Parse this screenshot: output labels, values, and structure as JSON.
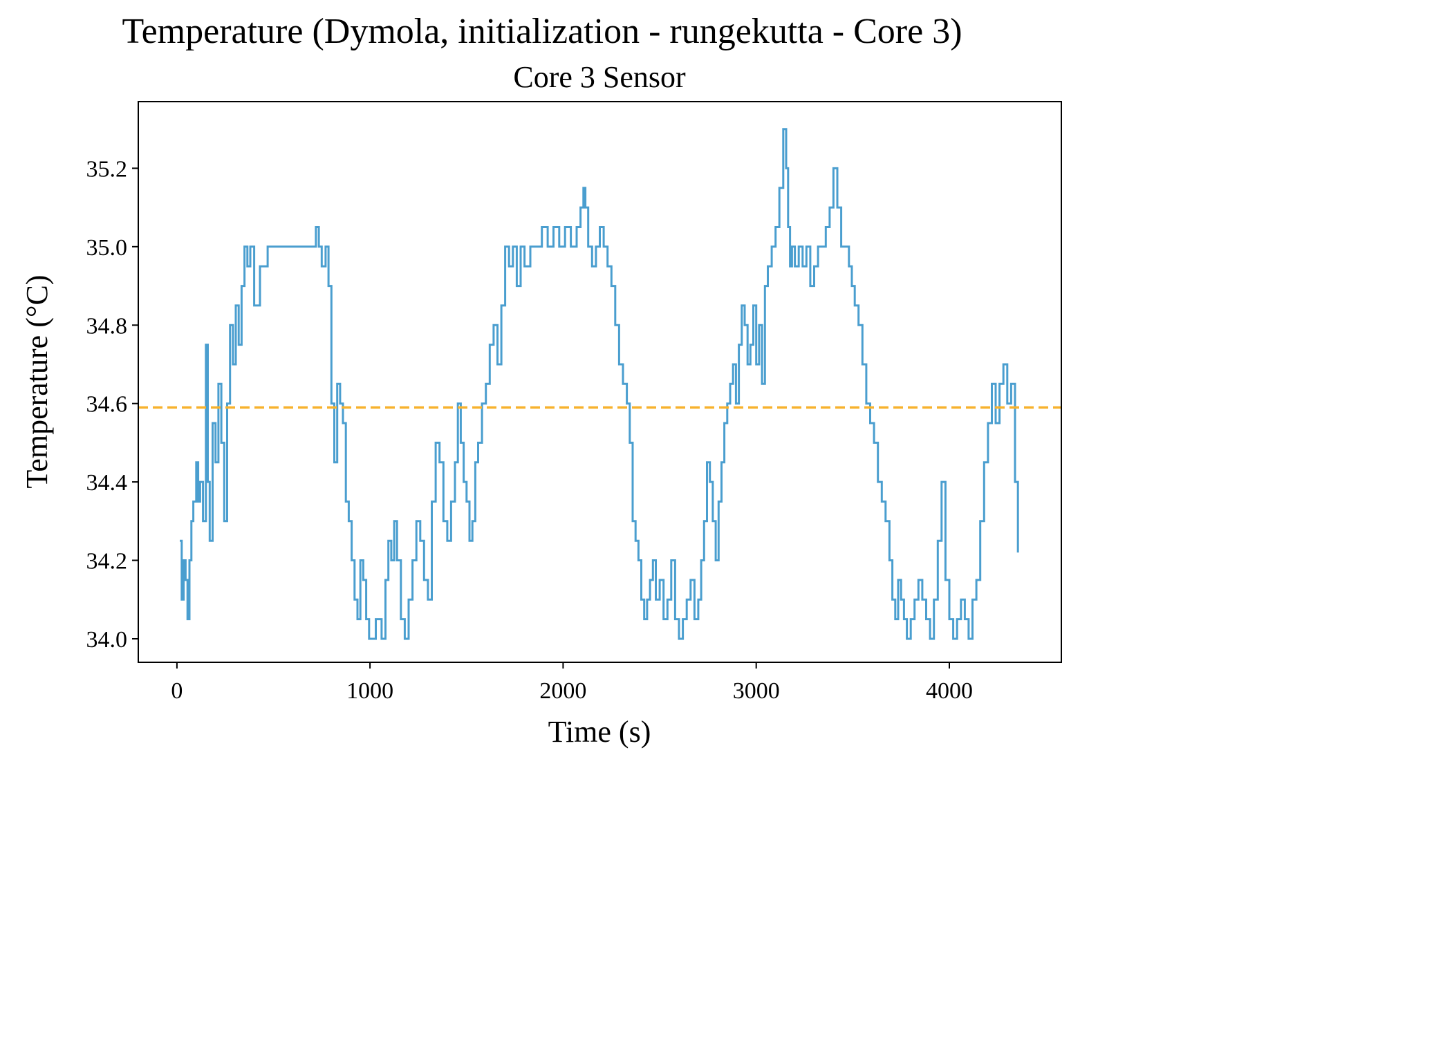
{
  "figure": {
    "suptitle": "Temperature (Dymola, initialization - rungekutta - Core 3)"
  },
  "chart_data": {
    "type": "line",
    "title": "Core 3 Sensor",
    "xlabel": "Time (s)",
    "ylabel": "Temperature (°C)",
    "xlim": [
      -200,
      4580
    ],
    "ylim": [
      33.94,
      35.37
    ],
    "xticks": [
      0,
      1000,
      2000,
      3000,
      4000
    ],
    "xtick_labels": [
      "0",
      "1000",
      "2000",
      "3000",
      "4000"
    ],
    "yticks": [
      34.0,
      34.2,
      34.4,
      34.6,
      34.8,
      35.0,
      35.2
    ],
    "ytick_labels": [
      "34.0",
      "34.2",
      "34.4",
      "34.6",
      "34.8",
      "35.0",
      "35.2"
    ],
    "grid": false,
    "legend": "none",
    "colors": {
      "series": "#4a9ecf",
      "reference": "#f7b22d"
    },
    "series": [
      {
        "style": "solid-step",
        "x": [
          15,
          25,
          35,
          45,
          55,
          65,
          75,
          85,
          100,
          110,
          120,
          135,
          150,
          160,
          170,
          185,
          200,
          215,
          230,
          245,
          260,
          275,
          290,
          305,
          320,
          335,
          350,
          365,
          380,
          400,
          430,
          470,
          520,
          580,
          640,
          700,
          720,
          735,
          750,
          770,
          785,
          800,
          815,
          830,
          845,
          860,
          875,
          890,
          905,
          920,
          935,
          950,
          965,
          980,
          995,
          1010,
          1030,
          1060,
          1080,
          1095,
          1110,
          1125,
          1140,
          1160,
          1180,
          1200,
          1220,
          1240,
          1260,
          1280,
          1300,
          1320,
          1340,
          1360,
          1380,
          1400,
          1420,
          1440,
          1455,
          1470,
          1485,
          1500,
          1515,
          1530,
          1545,
          1560,
          1580,
          1600,
          1620,
          1640,
          1660,
          1680,
          1700,
          1720,
          1740,
          1760,
          1780,
          1800,
          1830,
          1860,
          1890,
          1920,
          1950,
          1980,
          2010,
          2040,
          2070,
          2090,
          2105,
          2115,
          2130,
          2150,
          2170,
          2190,
          2210,
          2230,
          2250,
          2270,
          2290,
          2310,
          2330,
          2345,
          2360,
          2375,
          2390,
          2405,
          2420,
          2435,
          2450,
          2465,
          2480,
          2500,
          2520,
          2540,
          2560,
          2580,
          2600,
          2620,
          2640,
          2660,
          2680,
          2700,
          2715,
          2730,
          2745,
          2760,
          2775,
          2790,
          2805,
          2820,
          2835,
          2850,
          2865,
          2880,
          2895,
          2910,
          2925,
          2940,
          2955,
          2970,
          2985,
          3000,
          3015,
          3030,
          3045,
          3060,
          3080,
          3100,
          3120,
          3140,
          3155,
          3165,
          3175,
          3185,
          3200,
          3220,
          3240,
          3260,
          3280,
          3300,
          3320,
          3340,
          3360,
          3380,
          3400,
          3420,
          3440,
          3460,
          3470,
          3480,
          3495,
          3510,
          3530,
          3550,
          3570,
          3590,
          3610,
          3630,
          3650,
          3670,
          3690,
          3705,
          3720,
          3735,
          3750,
          3765,
          3780,
          3800,
          3820,
          3840,
          3860,
          3880,
          3900,
          3920,
          3940,
          3960,
          3980,
          4000,
          4020,
          4040,
          4060,
          4080,
          4100,
          4120,
          4140,
          4160,
          4180,
          4200,
          4220,
          4240,
          4260,
          4280,
          4300,
          4320,
          4340,
          4355
        ],
        "y": [
          34.25,
          34.1,
          34.2,
          34.15,
          34.05,
          34.2,
          34.3,
          34.35,
          34.45,
          34.35,
          34.4,
          34.3,
          34.75,
          34.4,
          34.25,
          34.55,
          34.45,
          34.65,
          34.5,
          34.3,
          34.6,
          34.8,
          34.7,
          34.85,
          34.75,
          34.9,
          35.0,
          34.95,
          35.0,
          34.85,
          34.95,
          35.0,
          35.0,
          35.0,
          35.0,
          35.0,
          35.05,
          35.0,
          34.95,
          35.0,
          34.9,
          34.6,
          34.45,
          34.65,
          34.6,
          34.55,
          34.35,
          34.3,
          34.2,
          34.1,
          34.05,
          34.2,
          34.15,
          34.05,
          34.0,
          34.0,
          34.05,
          34.0,
          34.15,
          34.25,
          34.2,
          34.3,
          34.2,
          34.05,
          34.0,
          34.1,
          34.2,
          34.3,
          34.25,
          34.15,
          34.1,
          34.35,
          34.5,
          34.45,
          34.3,
          34.25,
          34.35,
          34.45,
          34.6,
          34.5,
          34.4,
          34.35,
          34.25,
          34.3,
          34.45,
          34.5,
          34.6,
          34.65,
          34.75,
          34.8,
          34.7,
          34.85,
          35.0,
          34.95,
          35.0,
          34.9,
          35.0,
          34.95,
          35.0,
          35.0,
          35.05,
          35.0,
          35.05,
          35.0,
          35.05,
          35.0,
          35.05,
          35.1,
          35.15,
          35.1,
          35.0,
          34.95,
          35.0,
          35.05,
          35.0,
          34.95,
          34.9,
          34.8,
          34.7,
          34.65,
          34.6,
          34.5,
          34.3,
          34.25,
          34.2,
          34.1,
          34.05,
          34.1,
          34.15,
          34.2,
          34.1,
          34.15,
          34.05,
          34.1,
          34.2,
          34.05,
          34.0,
          34.05,
          34.1,
          34.15,
          34.05,
          34.1,
          34.2,
          34.3,
          34.45,
          34.4,
          34.3,
          34.2,
          34.35,
          34.45,
          34.55,
          34.6,
          34.65,
          34.7,
          34.6,
          34.75,
          34.85,
          34.8,
          34.7,
          34.75,
          34.85,
          34.7,
          34.8,
          34.65,
          34.9,
          34.95,
          35.0,
          35.05,
          35.15,
          35.3,
          35.2,
          35.05,
          34.95,
          35.0,
          34.95,
          35.0,
          34.95,
          35.0,
          34.9,
          34.95,
          35.0,
          35.0,
          35.05,
          35.1,
          35.2,
          35.1,
          35.0,
          35.0,
          35.0,
          34.95,
          34.9,
          34.85,
          34.8,
          34.7,
          34.6,
          34.55,
          34.5,
          34.4,
          34.35,
          34.3,
          34.2,
          34.1,
          34.05,
          34.15,
          34.1,
          34.05,
          34.0,
          34.05,
          34.1,
          34.15,
          34.1,
          34.05,
          34.0,
          34.1,
          34.25,
          34.4,
          34.15,
          34.05,
          34.0,
          34.05,
          34.1,
          34.05,
          34.0,
          34.1,
          34.15,
          34.3,
          34.45,
          34.55,
          34.65,
          34.55,
          34.65,
          34.7,
          34.6,
          34.65,
          34.4,
          34.22
        ]
      },
      {
        "style": "dashed",
        "y_constant": 34.59
      }
    ]
  }
}
